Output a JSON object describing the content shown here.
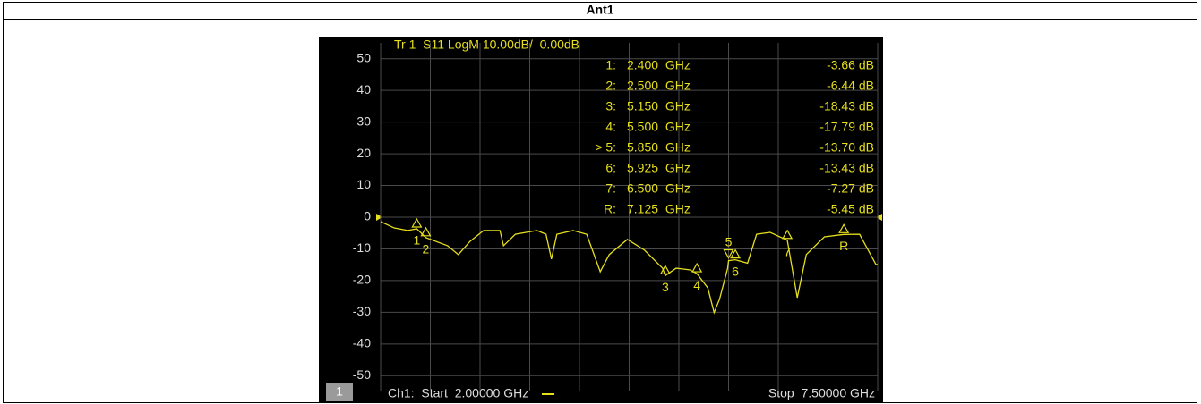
{
  "table_title": "Ant1",
  "chart_data": {
    "type": "line",
    "title": "Tr 1  S11 LogM 10.00dB/  0.00dB",
    "x_start_label": "Ch1:  Start  2.00000 GHz",
    "x_stop_label": "Stop  7.50000 GHz",
    "channel_badge": "1",
    "xlim": [
      2.0,
      7.5
    ],
    "xticks": [
      2.0,
      2.55,
      3.1,
      3.65,
      4.2,
      4.75,
      5.3,
      5.85,
      6.4,
      6.95,
      7.5
    ],
    "ylim": [
      -55,
      55
    ],
    "yticks": [
      50,
      40,
      30,
      20,
      10,
      0,
      -10,
      -20,
      -30,
      -40,
      -50
    ],
    "grid": true,
    "series": [
      {
        "name": "S11",
        "color": "#e6df1e",
        "x": [
          2.0,
          2.15,
          2.3,
          2.4,
          2.5,
          2.74,
          2.86,
          2.99,
          3.14,
          3.32,
          3.36,
          3.49,
          3.73,
          3.83,
          3.89,
          3.95,
          4.13,
          4.28,
          4.43,
          4.53,
          4.73,
          4.92,
          5.12,
          5.15,
          5.27,
          5.42,
          5.5,
          5.62,
          5.69,
          5.75,
          5.84,
          5.85,
          5.925,
          6.06,
          6.16,
          6.31,
          6.5,
          6.61,
          6.71,
          6.91,
          7.125,
          7.3,
          7.48,
          7.5
        ],
        "values": [
          -1.4,
          -3.4,
          -4.2,
          -3.66,
          -6.44,
          -9.0,
          -11.8,
          -7.6,
          -4.2,
          -4.2,
          -9.0,
          -5.4,
          -4.2,
          -5.4,
          -13.2,
          -5.4,
          -4.2,
          -5.4,
          -17.2,
          -11.8,
          -7.0,
          -10.4,
          -16.1,
          -18.43,
          -16.1,
          -16.6,
          -17.79,
          -22.3,
          -30.1,
          -25.9,
          -16.1,
          -13.7,
          -13.43,
          -14.5,
          -5.4,
          -4.8,
          -7.27,
          -25.4,
          -11.8,
          -6.2,
          -5.45,
          -5.4,
          -14.9,
          -15.0
        ]
      }
    ],
    "markers": [
      {
        "list_label": "1:",
        "tag": "1",
        "x": 2.4,
        "x_label": "2.400  GHz",
        "value": -3.66,
        "value_label": "-3.66 dB"
      },
      {
        "list_label": "2:",
        "tag": "2",
        "x": 2.5,
        "x_label": "2.500  GHz",
        "value": -6.44,
        "value_label": "-6.44 dB"
      },
      {
        "list_label": "3:",
        "tag": "3",
        "x": 5.15,
        "x_label": "5.150  GHz",
        "value": -18.43,
        "value_label": "-18.43 dB"
      },
      {
        "list_label": "4:",
        "tag": "4",
        "x": 5.5,
        "x_label": "5.500  GHz",
        "value": -17.79,
        "value_label": "-17.79 dB"
      },
      {
        "list_label": "> 5:",
        "tag": "5",
        "x": 5.85,
        "x_label": "5.850  GHz",
        "value": -13.7,
        "value_label": "-13.70 dB"
      },
      {
        "list_label": "6:",
        "tag": "6",
        "x": 5.925,
        "x_label": "5.925  GHz",
        "value": -13.43,
        "value_label": "-13.43 dB"
      },
      {
        "list_label": "7:",
        "tag": "7",
        "x": 6.5,
        "x_label": "6.500  GHz",
        "value": -7.27,
        "value_label": "-7.27 dB"
      },
      {
        "list_label": "R:",
        "tag": "R",
        "x": 7.125,
        "x_label": "7.125  GHz",
        "value": -5.45,
        "value_label": "-5.45 dB"
      }
    ]
  }
}
